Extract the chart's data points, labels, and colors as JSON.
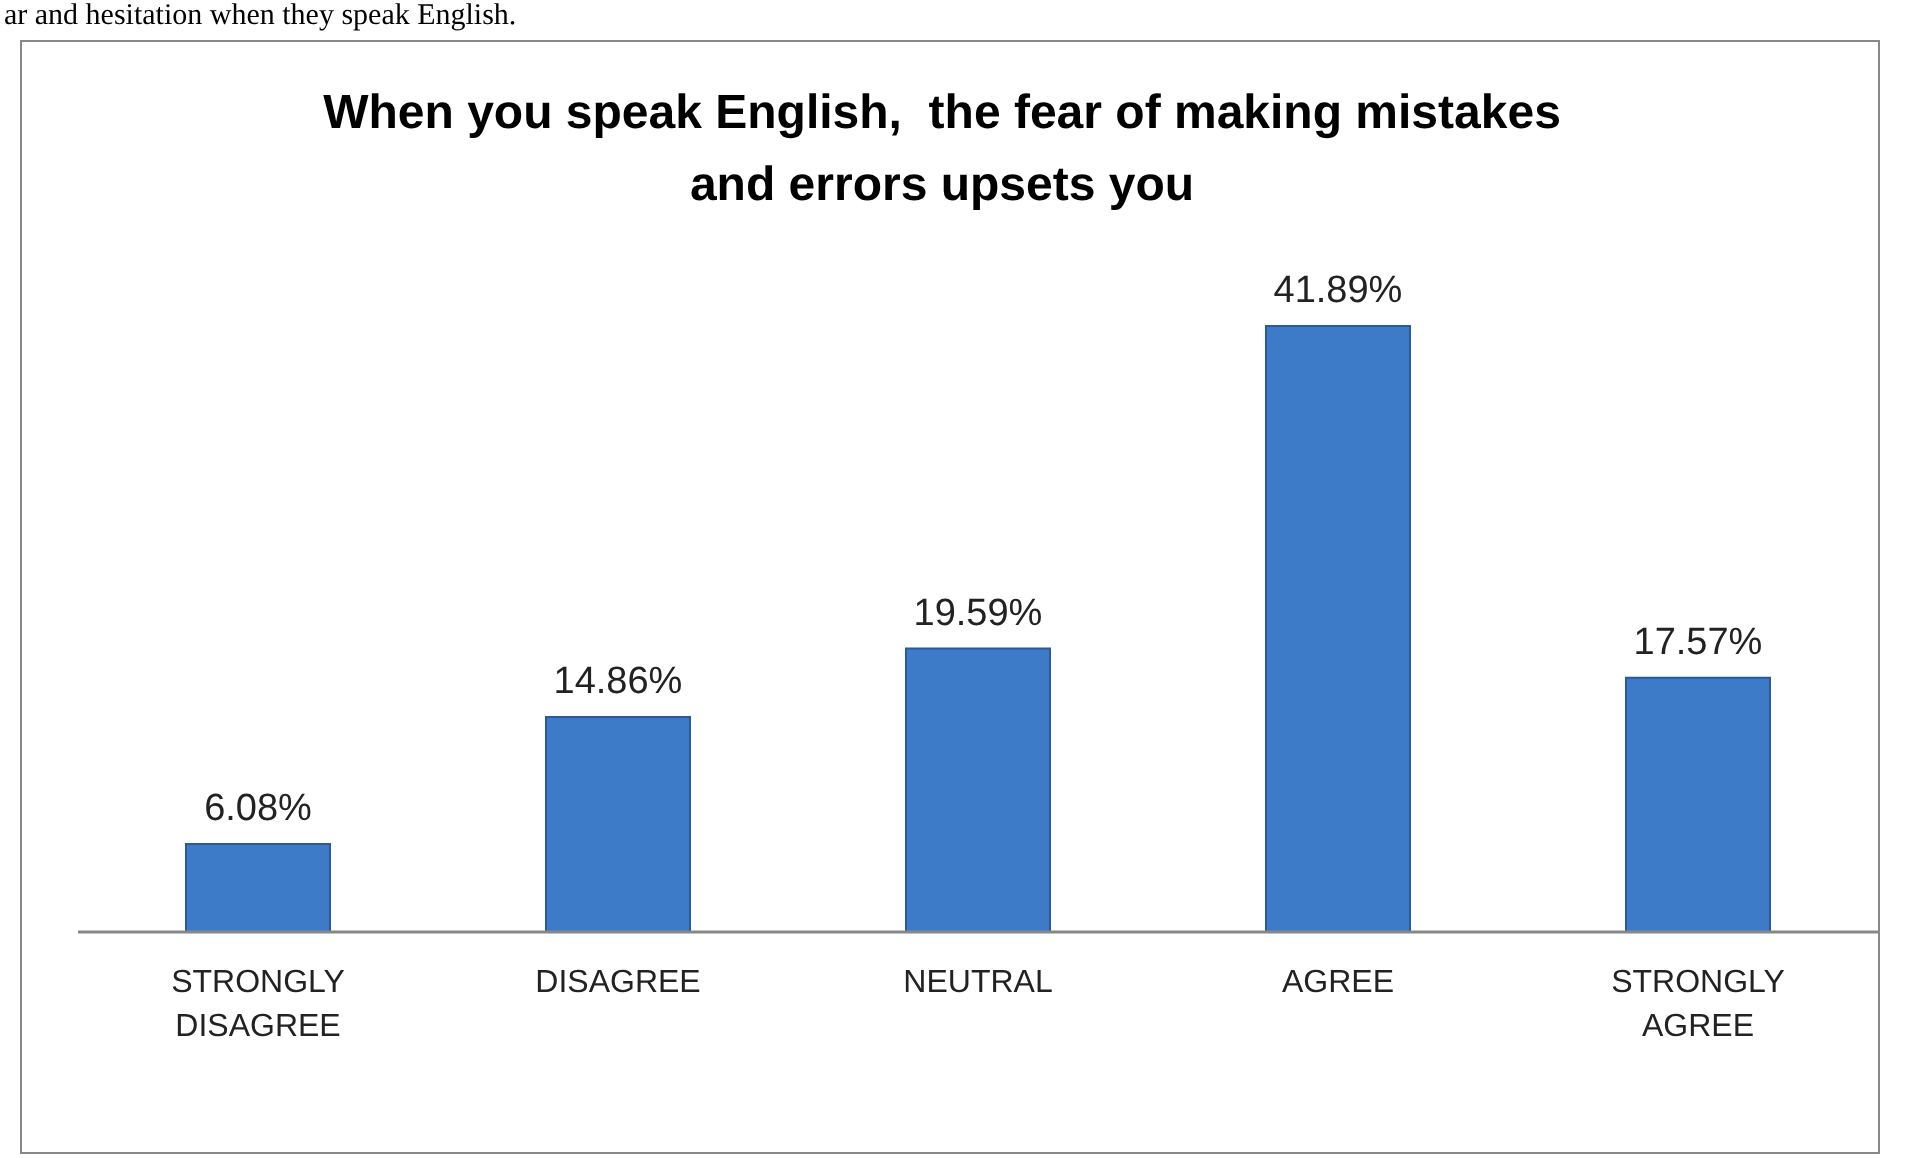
{
  "chart_data": {
    "type": "bar",
    "title": "When you speak English,  the fear of making mistakes and errors upsets you",
    "annotations": [
      "ar and hesitation when they speak English."
    ],
    "categories": [
      "STRONGLY DISAGREE",
      "DISAGREE",
      "NEUTRAL",
      "AGREE",
      "STRONGLY AGREE"
    ],
    "values": [
      6.08,
      14.86,
      19.59,
      41.89,
      17.57
    ],
    "value_labels": [
      "6.08%",
      "14.86%",
      "19.59%",
      "41.89%",
      "17.57%"
    ],
    "color": "#3d7bc8",
    "tick_labels": "x",
    "grid": false,
    "legend": false
  }
}
